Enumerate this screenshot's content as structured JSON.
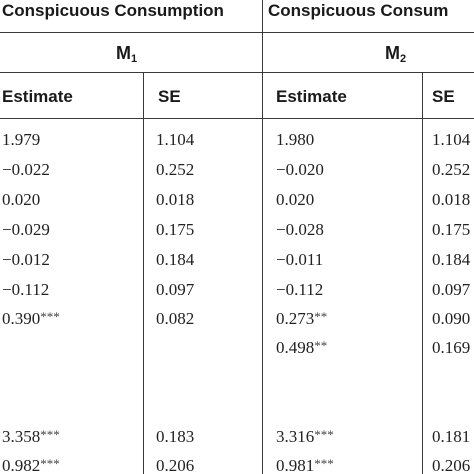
{
  "table": {
    "group_headers": [
      "Conspicuous Consumption",
      "Conspicuous Consum"
    ],
    "models": [
      {
        "letter": "M",
        "sub": "1"
      },
      {
        "letter": "M",
        "sub": "2"
      }
    ],
    "column_headers": [
      "Estimate",
      "SE",
      "Estimate",
      "SE"
    ],
    "rows": [
      {
        "m1_est": "1.979",
        "m1_sig": "",
        "m1_se": "1.104",
        "m2_est": "1.980",
        "m2_sig": "",
        "m2_se": "1.104"
      },
      {
        "m1_est": "−0.022",
        "m1_sig": "",
        "m1_se": "0.252",
        "m2_est": "−0.020",
        "m2_sig": "",
        "m2_se": "0.252"
      },
      {
        "m1_est": "0.020",
        "m1_sig": "",
        "m1_se": "0.018",
        "m2_est": "0.020",
        "m2_sig": "",
        "m2_se": "0.018"
      },
      {
        "m1_est": "−0.029",
        "m1_sig": "",
        "m1_se": "0.175",
        "m2_est": "−0.028",
        "m2_sig": "",
        "m2_se": "0.175"
      },
      {
        "m1_est": "−0.012",
        "m1_sig": "",
        "m1_se": "0.184",
        "m2_est": "−0.011",
        "m2_sig": "",
        "m2_se": "0.184"
      },
      {
        "m1_est": "−0.112",
        "m1_sig": "",
        "m1_se": "0.097",
        "m2_est": "−0.112",
        "m2_sig": "",
        "m2_se": "0.097"
      },
      {
        "m1_est": "0.390",
        "m1_sig": "***",
        "m1_se": "0.082",
        "m2_est": "0.273",
        "m2_sig": "**",
        "m2_se": "0.090"
      },
      {
        "m1_est": "",
        "m1_sig": "",
        "m1_se": "",
        "m2_est": "0.498",
        "m2_sig": "**",
        "m2_se": "0.169"
      },
      {
        "m1_est": "",
        "m1_sig": "",
        "m1_se": "",
        "m2_est": "",
        "m2_sig": "",
        "m2_se": ""
      },
      {
        "m1_est": "",
        "m1_sig": "",
        "m1_se": "",
        "m2_est": "",
        "m2_sig": "",
        "m2_se": ""
      },
      {
        "m1_est": "3.358",
        "m1_sig": "***",
        "m1_se": "0.183",
        "m2_est": "3.316",
        "m2_sig": "***",
        "m2_se": "0.181"
      },
      {
        "m1_est": "0.982",
        "m1_sig": "***",
        "m1_se": "0.206",
        "m2_est": "0.981",
        "m2_sig": "***",
        "m2_se": "0.206"
      }
    ]
  }
}
